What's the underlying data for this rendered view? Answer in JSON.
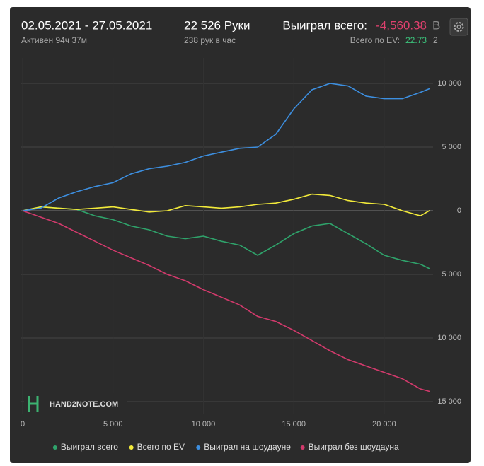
{
  "header": {
    "date_range": "02.05.2021 - 27.05.2021",
    "active": "Активен 94ч 37м",
    "hands": "22 526 Руки",
    "hands_rate": "238 рук в час",
    "won_label": "Выиграл всего:",
    "won_value": "-4,560.38",
    "ev_label": "Всего по EV:",
    "ev_value": "22.73",
    "cut_label": "В",
    "cut_value": "2"
  },
  "chart_data": {
    "type": "line",
    "watermark": "HAND2NOTE.COM",
    "x": [
      0,
      1000,
      2000,
      3000,
      4000,
      5000,
      6000,
      7000,
      8000,
      9000,
      10000,
      11000,
      12000,
      13000,
      14000,
      15000,
      16000,
      17000,
      18000,
      19000,
      20000,
      21000,
      22000,
      22526
    ],
    "series": [
      {
        "name": "Выиграл всего",
        "color": "#2fa36b",
        "values": [
          0,
          300,
          200,
          100,
          -400,
          -700,
          -1200,
          -1500,
          -2000,
          -2200,
          -2000,
          -2400,
          -2700,
          -3500,
          -2700,
          -1800,
          -1200,
          -1000,
          -1800,
          -2600,
          -3500,
          -3900,
          -4200,
          -4560
        ]
      },
      {
        "name": "Всего по EV",
        "color": "#f2ea3a",
        "values": [
          0,
          300,
          200,
          100,
          200,
          300,
          100,
          -100,
          0,
          400,
          300,
          200,
          300,
          500,
          600,
          900,
          1300,
          1200,
          800,
          600,
          500,
          0,
          -400,
          23
        ]
      },
      {
        "name": "Выиграл на шоудауне",
        "color": "#3d8fe0",
        "values": [
          0,
          200,
          1000,
          1500,
          1900,
          2200,
          2900,
          3300,
          3500,
          3800,
          4300,
          4600,
          4900,
          5000,
          6000,
          8000,
          9500,
          10000,
          9800,
          9000,
          8800,
          8800,
          9300,
          9600
        ]
      },
      {
        "name": "Выиграл без шоудауна",
        "color": "#d23a6c",
        "values": [
          0,
          -500,
          -1000,
          -1700,
          -2400,
          -3100,
          -3700,
          -4300,
          -5000,
          -5500,
          -6200,
          -6800,
          -7400,
          -8300,
          -8700,
          -9400,
          -10200,
          -11000,
          -11700,
          -12200,
          -12700,
          -13200,
          -14000,
          -14200
        ]
      }
    ],
    "xlim": [
      0,
      22526
    ],
    "ylim": [
      -16000,
      12000
    ],
    "xticks": [
      0,
      {
        "value": 5000,
        "label": "5 000"
      },
      {
        "value": 10000,
        "label": "10 000"
      },
      {
        "value": 15000,
        "label": "15 000"
      },
      {
        "value": 20000,
        "label": "20 000"
      }
    ],
    "yticks": [
      {
        "value": 10000,
        "label": "10 000"
      },
      {
        "value": 5000,
        "label": "5 000"
      },
      0,
      {
        "value": -5000,
        "label": "5 000"
      },
      {
        "value": -10000,
        "label": "10 000"
      },
      {
        "value": -15000,
        "label": "15 000"
      }
    ],
    "grid": true
  }
}
